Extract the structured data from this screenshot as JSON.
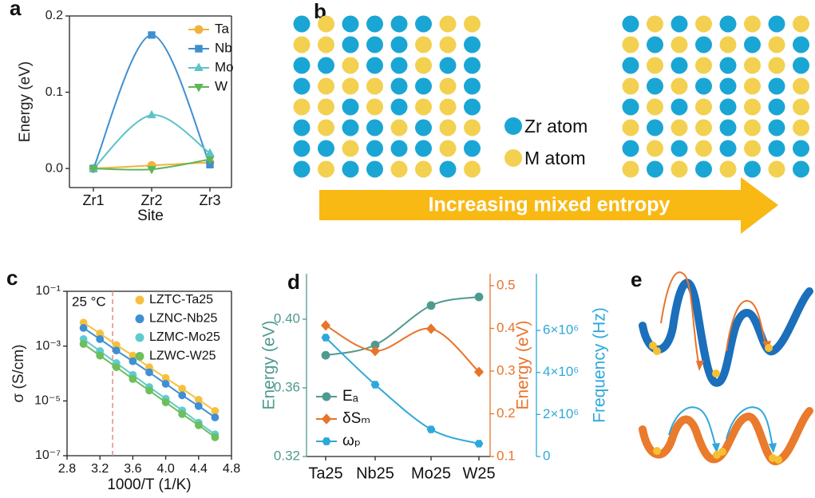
{
  "chart_data": [
    {
      "type": "line",
      "panel": "a",
      "xlabel": "Site",
      "ylabel": "Energy (eV)",
      "smooth": true,
      "categories": [
        "Zr1",
        "Zr2",
        "Zr3"
      ],
      "ylim": [
        -0.025,
        0.2
      ],
      "yticks": [
        {
          "value": 0,
          "label": "0.0"
        },
        0.1,
        0.2
      ],
      "legend": "upper right",
      "series": [
        {
          "name": "Ta",
          "color": "#f2b33d",
          "marker": "circle",
          "values": [
            0,
            0.004,
            0.008
          ]
        },
        {
          "name": "Nb",
          "color": "#3f8fcf",
          "marker": "square",
          "values": [
            0,
            0.175,
            0.005
          ]
        },
        {
          "name": "Mo",
          "color": "#5cc3c9",
          "marker": "triangle",
          "values": [
            0,
            0.07,
            0.02
          ]
        },
        {
          "name": "W",
          "color": "#5db65a",
          "marker": "triangle-down",
          "values": [
            0,
            -0.001,
            0.012
          ]
        }
      ]
    },
    {
      "type": "line",
      "panel": "c",
      "xlabel": "1000/T (1/K)",
      "ylabel": "σ (S/cm)",
      "ylog": true,
      "annotation": "25 °C",
      "reference_x": 3.354,
      "reference_color": "#e48a8a",
      "x": [
        3.0,
        3.2,
        3.4,
        3.6,
        3.8,
        4.0,
        4.2,
        4.4,
        4.6
      ],
      "xlim": [
        2.8,
        4.8
      ],
      "xticks": [
        2.8,
        3.2,
        3.6,
        {
          "value": 4,
          "label": "4.0"
        },
        4.4,
        4.8
      ],
      "ylim": [
        1e-07,
        0.1
      ],
      "yticks": [
        {
          "value": 1e-07,
          "label": "10⁻⁷"
        },
        {
          "value": 1e-05,
          "label": "10⁻⁵"
        },
        {
          "value": 0.001,
          "label": "10⁻³"
        },
        {
          "value": 0.1,
          "label": "10⁻¹"
        }
      ],
      "legend": "upper right",
      "series": [
        {
          "name": "LZTC-Ta25",
          "color": "#f6c03e",
          "marker": "circle",
          "values": [
            0.0072,
            0.0029,
            0.0011,
            0.00045,
            0.00017,
            6.9e-05,
            2.8e-05,
            1.1e-05,
            4.3e-06
          ]
        },
        {
          "name": "LZNC-Nb25",
          "color": "#3f8fd4",
          "marker": "circle",
          "values": [
            0.0046,
            0.0018,
            0.00069,
            0.00028,
            0.00011,
            4.2e-05,
            1.6e-05,
            6.5e-06,
            2.5e-06
          ]
        },
        {
          "name": "LZMC-Mo25",
          "color": "#5fcbd0",
          "marker": "circle",
          "values": [
            0.0018,
            0.00066,
            0.00024,
            8.9e-05,
            3.2e-05,
            1.2e-05,
            4.5e-06,
            1.6e-06,
            6e-07
          ]
        },
        {
          "name": "LZWC-W25",
          "color": "#6cbf5a",
          "marker": "circle",
          "values": [
            0.0012,
            0.00045,
            0.00017,
            6.3e-05,
            2.4e-05,
            8.9e-06,
            3.3e-06,
            1.3e-06,
            4.7e-07
          ]
        }
      ]
    },
    {
      "type": "line",
      "panel": "d",
      "smooth": true,
      "ylabel": "Energy (eV)",
      "y2label": "Energy (eV)",
      "y3label": "Frequency (Hz)",
      "categories": [
        "Ta25",
        "Nb25",
        "Mo25",
        "W25"
      ],
      "ylim": [
        0.32,
        0.4265
      ],
      "yticks": [
        0.32,
        0.36,
        {
          "value": 0.4,
          "label": "0.40"
        }
      ],
      "y2lim": [
        0.1,
        0.528
      ],
      "y2ticks": [
        0.1,
        0.2,
        0.3,
        0.4,
        0.5
      ],
      "y3lim": [
        0,
        8700000
      ],
      "y3ticks": [
        0,
        {
          "value": 2000000,
          "label": "2×10⁶"
        },
        {
          "value": 4000000,
          "label": "4×10⁶"
        },
        {
          "value": 6000000,
          "label": "6×10⁶"
        }
      ],
      "legend": "lower left",
      "series": [
        {
          "name": "Eₐ",
          "color": "#4f9a8f",
          "marker": "circle",
          "axis": "y",
          "values": [
            0.379,
            0.385,
            0.408,
            0.413
          ]
        },
        {
          "name": "δSₘ",
          "color": "#e8742a",
          "marker": "diamond",
          "axis": "y2",
          "values": [
            0.407,
            0.347,
            0.399,
            0.298
          ]
        },
        {
          "name": "ωₚ",
          "color": "#2ea8db",
          "marker": "hexagon",
          "axis": "y3",
          "values": [
            5660000,
            3420000,
            1290000,
            610000
          ]
        }
      ]
    }
  ],
  "diagram_b": {
    "panel": "b",
    "legend": [
      "Zr atom",
      "M atom"
    ],
    "arrow_text": "Increasing mixed entropy"
  },
  "diagram_e": {
    "panel": "e"
  }
}
